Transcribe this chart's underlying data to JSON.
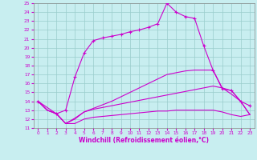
{
  "xlabel": "Windchill (Refroidissement éolien,°C)",
  "xlim": [
    -0.5,
    23.5
  ],
  "ylim": [
    11,
    25
  ],
  "xticks": [
    0,
    1,
    2,
    3,
    4,
    5,
    6,
    7,
    8,
    9,
    10,
    11,
    12,
    13,
    14,
    15,
    16,
    17,
    18,
    19,
    20,
    21,
    22,
    23
  ],
  "yticks": [
    11,
    12,
    13,
    14,
    15,
    16,
    17,
    18,
    19,
    20,
    21,
    22,
    23,
    24,
    25
  ],
  "bg_color": "#c8eef0",
  "line_color": "#cc00cc",
  "grid_color": "#99cccc",
  "line1": {
    "x": [
      0,
      1,
      2,
      3,
      4,
      5,
      6,
      7,
      8,
      9,
      10,
      11,
      12,
      13,
      14,
      15,
      16,
      17,
      18,
      19,
      20,
      21,
      22,
      23
    ],
    "y": [
      14,
      13,
      12.6,
      11.5,
      12.1,
      12.8,
      13.1,
      13.3,
      13.5,
      13.7,
      13.9,
      14.1,
      14.3,
      14.5,
      14.7,
      14.9,
      15.1,
      15.3,
      15.5,
      15.7,
      15.5,
      14.8,
      14.0,
      12.5
    ]
  },
  "line2": {
    "x": [
      0,
      1,
      2,
      3,
      4,
      5,
      6,
      7,
      8,
      9,
      10,
      11,
      12,
      13,
      14,
      15,
      16,
      17,
      18,
      19,
      20,
      21,
      22,
      23
    ],
    "y": [
      14,
      13,
      12.6,
      11.5,
      12.0,
      12.8,
      13.2,
      13.6,
      14.0,
      14.5,
      15.0,
      15.5,
      16.0,
      16.5,
      17.0,
      17.2,
      17.4,
      17.5,
      17.5,
      17.5,
      15.5,
      15.2,
      14.0,
      12.5
    ]
  },
  "line3": {
    "x": [
      0,
      2,
      3,
      4,
      5,
      6,
      7,
      8,
      9,
      10,
      11,
      12,
      13,
      14,
      15,
      16,
      17,
      18,
      19,
      20,
      21,
      22,
      23
    ],
    "y": [
      14,
      12.6,
      13.0,
      16.7,
      19.4,
      20.8,
      21.1,
      21.3,
      21.5,
      21.8,
      22.0,
      22.3,
      22.7,
      25.0,
      24.0,
      23.5,
      23.3,
      20.2,
      17.5,
      15.4,
      15.2,
      14.0,
      13.5
    ]
  },
  "line4": {
    "x": [
      0,
      1,
      2,
      3,
      4,
      5,
      6,
      7,
      8,
      9,
      10,
      11,
      12,
      13,
      14,
      15,
      16,
      17,
      18,
      19,
      20,
      21,
      22,
      23
    ],
    "y": [
      14,
      13,
      12.6,
      11.5,
      11.5,
      12.0,
      12.2,
      12.3,
      12.4,
      12.5,
      12.6,
      12.7,
      12.8,
      12.9,
      12.9,
      13.0,
      13.0,
      13.0,
      13.0,
      13.0,
      12.8,
      12.5,
      12.3,
      12.5
    ]
  }
}
